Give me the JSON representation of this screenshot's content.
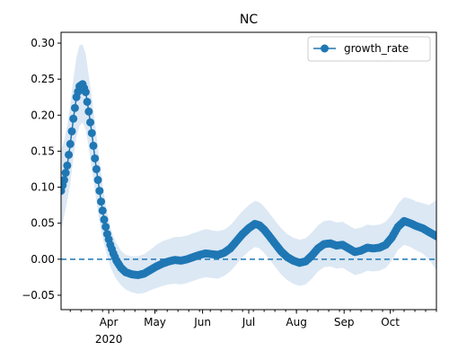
{
  "chart_data": {
    "type": "line",
    "title": "NC",
    "xlabel": "",
    "ylabel": "",
    "x_axis": {
      "type": "date",
      "range": [
        "2020-03-01",
        "2020-10-31"
      ],
      "major_ticks": [
        {
          "date": "2020-04-01",
          "label": "Apr",
          "sublabel": "2020"
        },
        {
          "date": "2020-05-01",
          "label": "May"
        },
        {
          "date": "2020-06-01",
          "label": "Jun"
        },
        {
          "date": "2020-07-01",
          "label": "Jul"
        },
        {
          "date": "2020-08-01",
          "label": "Aug"
        },
        {
          "date": "2020-09-01",
          "label": "Sep"
        },
        {
          "date": "2020-10-01",
          "label": "Oct"
        }
      ],
      "minor_ticks": "weekly"
    },
    "y_axis": {
      "range": [
        -0.07,
        0.315
      ],
      "ticks": [
        -0.05,
        0.0,
        0.05,
        0.1,
        0.15,
        0.2,
        0.25,
        0.3
      ],
      "tick_labels": [
        "−0.05",
        "0.00",
        "0.05",
        "0.10",
        "0.15",
        "0.20",
        "0.25",
        "0.30"
      ]
    },
    "grid": false,
    "legend": {
      "placement": "top-right",
      "entries": [
        "growth_rate"
      ]
    },
    "reference_line": {
      "y": 0.0,
      "style": "dashed",
      "color": "#1f77b4"
    },
    "series": [
      {
        "name": "growth_rate",
        "color": "#1f77b4",
        "marker": "circle",
        "band_color": "#dce8f4",
        "points": [
          {
            "date": "2020-03-01",
            "y": 0.095,
            "lower": 0.04,
            "upper": 0.15
          },
          {
            "date": "2020-03-03",
            "y": 0.11,
            "lower": 0.06,
            "upper": 0.165
          },
          {
            "date": "2020-03-05",
            "y": 0.13,
            "lower": 0.08,
            "upper": 0.185
          },
          {
            "date": "2020-03-07",
            "y": 0.16,
            "lower": 0.105,
            "upper": 0.215
          },
          {
            "date": "2020-03-09",
            "y": 0.195,
            "lower": 0.14,
            "upper": 0.25
          },
          {
            "date": "2020-03-11",
            "y": 0.225,
            "lower": 0.17,
            "upper": 0.28
          },
          {
            "date": "2020-03-13",
            "y": 0.24,
            "lower": 0.185,
            "upper": 0.297
          },
          {
            "date": "2020-03-15",
            "y": 0.243,
            "lower": 0.19,
            "upper": 0.298
          },
          {
            "date": "2020-03-17",
            "y": 0.232,
            "lower": 0.18,
            "upper": 0.285
          },
          {
            "date": "2020-03-19",
            "y": 0.205,
            "lower": 0.155,
            "upper": 0.255
          },
          {
            "date": "2020-03-21",
            "y": 0.175,
            "lower": 0.125,
            "upper": 0.225
          },
          {
            "date": "2020-03-23",
            "y": 0.14,
            "lower": 0.095,
            "upper": 0.19
          },
          {
            "date": "2020-03-25",
            "y": 0.11,
            "lower": 0.065,
            "upper": 0.155
          },
          {
            "date": "2020-03-27",
            "y": 0.08,
            "lower": 0.04,
            "upper": 0.12
          },
          {
            "date": "2020-03-29",
            "y": 0.055,
            "lower": 0.02,
            "upper": 0.09
          },
          {
            "date": "2020-03-31",
            "y": 0.035,
            "lower": 0.005,
            "upper": 0.065
          },
          {
            "date": "2020-04-02",
            "y": 0.02,
            "lower": -0.01,
            "upper": 0.045
          },
          {
            "date": "2020-04-04",
            "y": 0.008,
            "lower": -0.02,
            "upper": 0.032
          },
          {
            "date": "2020-04-06",
            "y": -0.002,
            "lower": -0.028,
            "upper": 0.022
          },
          {
            "date": "2020-04-09",
            "y": -0.012,
            "lower": -0.036,
            "upper": 0.012
          },
          {
            "date": "2020-04-12",
            "y": -0.018,
            "lower": -0.042,
            "upper": 0.006
          },
          {
            "date": "2020-04-16",
            "y": -0.021,
            "lower": -0.046,
            "upper": 0.004
          },
          {
            "date": "2020-04-20",
            "y": -0.022,
            "lower": -0.048,
            "upper": 0.004
          },
          {
            "date": "2020-04-24",
            "y": -0.02,
            "lower": -0.047,
            "upper": 0.007
          },
          {
            "date": "2020-04-28",
            "y": -0.015,
            "lower": -0.043,
            "upper": 0.013
          },
          {
            "date": "2020-05-02",
            "y": -0.01,
            "lower": -0.04,
            "upper": 0.02
          },
          {
            "date": "2020-05-06",
            "y": -0.006,
            "lower": -0.037,
            "upper": 0.025
          },
          {
            "date": "2020-05-10",
            "y": -0.003,
            "lower": -0.035,
            "upper": 0.028
          },
          {
            "date": "2020-05-14",
            "y": -0.001,
            "lower": -0.034,
            "upper": 0.031
          },
          {
            "date": "2020-05-18",
            "y": -0.002,
            "lower": -0.035,
            "upper": 0.031
          },
          {
            "date": "2020-05-22",
            "y": 0.0,
            "lower": -0.033,
            "upper": 0.033
          },
          {
            "date": "2020-05-26",
            "y": 0.003,
            "lower": -0.03,
            "upper": 0.036
          },
          {
            "date": "2020-05-30",
            "y": 0.006,
            "lower": -0.027,
            "upper": 0.039
          },
          {
            "date": "2020-06-03",
            "y": 0.008,
            "lower": -0.025,
            "upper": 0.042
          },
          {
            "date": "2020-06-07",
            "y": 0.007,
            "lower": -0.026,
            "upper": 0.04
          },
          {
            "date": "2020-06-11",
            "y": 0.006,
            "lower": -0.027,
            "upper": 0.039
          },
          {
            "date": "2020-06-15",
            "y": 0.009,
            "lower": -0.023,
            "upper": 0.041
          },
          {
            "date": "2020-06-19",
            "y": 0.015,
            "lower": -0.017,
            "upper": 0.047
          },
          {
            "date": "2020-06-23",
            "y": 0.025,
            "lower": -0.007,
            "upper": 0.057
          },
          {
            "date": "2020-06-27",
            "y": 0.035,
            "lower": 0.003,
            "upper": 0.067
          },
          {
            "date": "2020-07-01",
            "y": 0.043,
            "lower": 0.011,
            "upper": 0.075
          },
          {
            "date": "2020-07-05",
            "y": 0.049,
            "lower": 0.017,
            "upper": 0.081
          },
          {
            "date": "2020-07-08",
            "y": 0.047,
            "lower": 0.015,
            "upper": 0.079
          },
          {
            "date": "2020-07-11",
            "y": 0.041,
            "lower": 0.009,
            "upper": 0.073
          },
          {
            "date": "2020-07-14",
            "y": 0.033,
            "lower": 0.001,
            "upper": 0.065
          },
          {
            "date": "2020-07-18",
            "y": 0.022,
            "lower": -0.01,
            "upper": 0.054
          },
          {
            "date": "2020-07-22",
            "y": 0.011,
            "lower": -0.021,
            "upper": 0.043
          },
          {
            "date": "2020-07-26",
            "y": 0.003,
            "lower": -0.029,
            "upper": 0.035
          },
          {
            "date": "2020-07-30",
            "y": -0.002,
            "lower": -0.034,
            "upper": 0.03
          },
          {
            "date": "2020-08-03",
            "y": -0.005,
            "lower": -0.037,
            "upper": 0.027
          },
          {
            "date": "2020-08-07",
            "y": -0.003,
            "lower": -0.035,
            "upper": 0.029
          },
          {
            "date": "2020-08-11",
            "y": 0.005,
            "lower": -0.027,
            "upper": 0.037
          },
          {
            "date": "2020-08-15",
            "y": 0.015,
            "lower": -0.017,
            "upper": 0.047
          },
          {
            "date": "2020-08-19",
            "y": 0.021,
            "lower": -0.011,
            "upper": 0.053
          },
          {
            "date": "2020-08-23",
            "y": 0.022,
            "lower": -0.01,
            "upper": 0.054
          },
          {
            "date": "2020-08-27",
            "y": 0.019,
            "lower": -0.013,
            "upper": 0.051
          },
          {
            "date": "2020-08-31",
            "y": 0.02,
            "lower": -0.012,
            "upper": 0.052
          },
          {
            "date": "2020-09-04",
            "y": 0.015,
            "lower": -0.017,
            "upper": 0.047
          },
          {
            "date": "2020-09-08",
            "y": 0.01,
            "lower": -0.022,
            "upper": 0.042
          },
          {
            "date": "2020-09-12",
            "y": 0.012,
            "lower": -0.02,
            "upper": 0.044
          },
          {
            "date": "2020-09-16",
            "y": 0.016,
            "lower": -0.016,
            "upper": 0.048
          },
          {
            "date": "2020-09-20",
            "y": 0.015,
            "lower": -0.017,
            "upper": 0.047
          },
          {
            "date": "2020-09-24",
            "y": 0.016,
            "lower": -0.016,
            "upper": 0.048
          },
          {
            "date": "2020-09-28",
            "y": 0.02,
            "lower": -0.012,
            "upper": 0.052
          },
          {
            "date": "2020-10-02",
            "y": 0.03,
            "lower": -0.002,
            "upper": 0.062
          },
          {
            "date": "2020-10-06",
            "y": 0.045,
            "lower": 0.013,
            "upper": 0.077
          },
          {
            "date": "2020-10-10",
            "y": 0.053,
            "lower": 0.02,
            "upper": 0.086
          },
          {
            "date": "2020-10-14",
            "y": 0.05,
            "lower": 0.017,
            "upper": 0.084
          },
          {
            "date": "2020-10-18",
            "y": 0.046,
            "lower": 0.012,
            "upper": 0.08
          },
          {
            "date": "2020-10-22",
            "y": 0.043,
            "lower": 0.008,
            "upper": 0.078
          },
          {
            "date": "2020-10-26",
            "y": 0.038,
            "lower": 0.0,
            "upper": 0.075
          },
          {
            "date": "2020-10-31",
            "y": 0.032,
            "lower": -0.015,
            "upper": 0.082
          }
        ]
      }
    ]
  }
}
